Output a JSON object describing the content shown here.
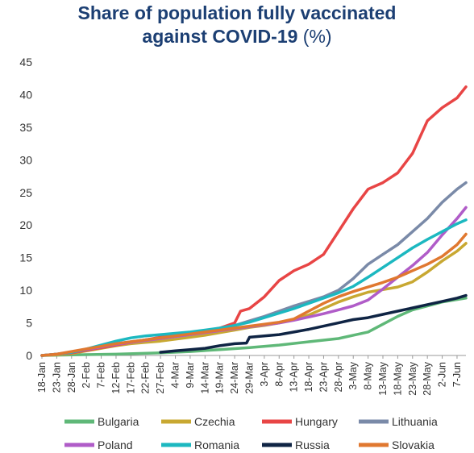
{
  "title": {
    "line1": "Share of population fully vaccinated",
    "line2_bold": "against COVID-19",
    "line2_unit": "(%)"
  },
  "chart_data": {
    "type": "line",
    "title": "Share of population fully vaccinated against COVID-19 (%)",
    "xlabel": "",
    "ylabel": "",
    "ylim": [
      0,
      45
    ],
    "yticks": [
      0,
      5,
      10,
      15,
      20,
      25,
      30,
      35,
      40,
      45
    ],
    "x_start": "18-Jan",
    "x_end": "10-Jun",
    "xtick_labels": [
      "18-Jan",
      "23-Jan",
      "28-Jan",
      "2-Feb",
      "7-Feb",
      "12-Feb",
      "17-Feb",
      "22-Feb",
      "27-Feb",
      "4-Mar",
      "9-Mar",
      "14-Mar",
      "19-Mar",
      "24-Mar",
      "29-Mar",
      "3-Apr",
      "8-Apr",
      "13-Apr",
      "18-Apr",
      "23-Apr",
      "28-Apr",
      "3-May",
      "8-May",
      "13-May",
      "18-May",
      "23-May",
      "28-May",
      "2-Jun",
      "7-Jun"
    ],
    "grid": false,
    "legend_position": "bottom",
    "series": [
      {
        "name": "Bulgaria",
        "color": "#5fb878",
        "points": [
          [
            "18-Jan",
            0
          ],
          [
            "28-Jan",
            0.1
          ],
          [
            "12-Feb",
            0.2
          ],
          [
            "27-Feb",
            0.4
          ],
          [
            "9-Mar",
            0.6
          ],
          [
            "19-Mar",
            0.9
          ],
          [
            "29-Mar",
            1.2
          ],
          [
            "8-Apr",
            1.6
          ],
          [
            "18-Apr",
            2.1
          ],
          [
            "28-Apr",
            2.6
          ],
          [
            "3-May",
            3.1
          ],
          [
            "8-May",
            3.6
          ],
          [
            "13-May",
            4.8
          ],
          [
            "18-May",
            6.0
          ],
          [
            "23-May",
            7.0
          ],
          [
            "28-May",
            7.6
          ],
          [
            "2-Jun",
            8.2
          ],
          [
            "10-Jun",
            8.8
          ]
        ]
      },
      {
        "name": "Czechia",
        "color": "#c8a832",
        "points": [
          [
            "18-Jan",
            0
          ],
          [
            "23-Jan",
            0.1
          ],
          [
            "28-Jan",
            0.3
          ],
          [
            "2-Feb",
            0.7
          ],
          [
            "7-Feb",
            1.1
          ],
          [
            "12-Feb",
            1.5
          ],
          [
            "17-Feb",
            1.8
          ],
          [
            "22-Feb",
            2.0
          ],
          [
            "27-Feb",
            2.2
          ],
          [
            "4-Mar",
            2.5
          ],
          [
            "9-Mar",
            2.8
          ],
          [
            "14-Mar",
            3.1
          ],
          [
            "19-Mar",
            3.5
          ],
          [
            "24-Mar",
            3.9
          ],
          [
            "29-Mar",
            4.3
          ],
          [
            "3-Apr",
            4.6
          ],
          [
            "8-Apr",
            5.0
          ],
          [
            "13-Apr",
            5.5
          ],
          [
            "18-Apr",
            6.2
          ],
          [
            "23-Apr",
            7.2
          ],
          [
            "28-Apr",
            8.2
          ],
          [
            "3-May",
            9.0
          ],
          [
            "8-May",
            9.7
          ],
          [
            "13-May",
            10.1
          ],
          [
            "18-May",
            10.5
          ],
          [
            "23-May",
            11.3
          ],
          [
            "28-May",
            12.8
          ],
          [
            "2-Jun",
            14.5
          ],
          [
            "7-Jun",
            16.0
          ],
          [
            "10-Jun",
            17.2
          ]
        ]
      },
      {
        "name": "Hungary",
        "color": "#e84545",
        "points": [
          [
            "18-Jan",
            0
          ],
          [
            "28-Jan",
            0.4
          ],
          [
            "7-Feb",
            1.2
          ],
          [
            "17-Feb",
            2.0
          ],
          [
            "27-Feb",
            2.8
          ],
          [
            "4-Mar",
            3.2
          ],
          [
            "14-Mar",
            3.8
          ],
          [
            "19-Mar",
            4.2
          ],
          [
            "24-Mar",
            5.0
          ],
          [
            "26-Mar",
            6.8
          ],
          [
            "29-Mar",
            7.2
          ],
          [
            "3-Apr",
            9.0
          ],
          [
            "8-Apr",
            11.5
          ],
          [
            "13-Apr",
            13.0
          ],
          [
            "18-Apr",
            14.0
          ],
          [
            "23-Apr",
            15.5
          ],
          [
            "28-Apr",
            19.0
          ],
          [
            "3-May",
            22.5
          ],
          [
            "8-May",
            25.5
          ],
          [
            "13-May",
            26.5
          ],
          [
            "18-May",
            28.0
          ],
          [
            "23-May",
            31.0
          ],
          [
            "28-May",
            36.0
          ],
          [
            "2-Jun",
            38.0
          ],
          [
            "7-Jun",
            39.5
          ],
          [
            "10-Jun",
            41.2
          ]
        ]
      },
      {
        "name": "Lithuania",
        "color": "#7a8aa8",
        "points": [
          [
            "18-Jan",
            0
          ],
          [
            "23-Jan",
            0.2
          ],
          [
            "28-Jan",
            0.5
          ],
          [
            "2-Feb",
            0.9
          ],
          [
            "7-Feb",
            1.4
          ],
          [
            "12-Feb",
            1.8
          ],
          [
            "17-Feb",
            2.1
          ],
          [
            "22-Feb",
            2.4
          ],
          [
            "27-Feb",
            2.7
          ],
          [
            "4-Mar",
            3.0
          ],
          [
            "9-Mar",
            3.3
          ],
          [
            "14-Mar",
            3.7
          ],
          [
            "19-Mar",
            4.1
          ],
          [
            "24-Mar",
            4.6
          ],
          [
            "29-Mar",
            5.3
          ],
          [
            "3-Apr",
            6.0
          ],
          [
            "8-Apr",
            6.8
          ],
          [
            "13-Apr",
            7.6
          ],
          [
            "18-Apr",
            8.3
          ],
          [
            "23-Apr",
            9.0
          ],
          [
            "28-Apr",
            10.0
          ],
          [
            "3-May",
            11.8
          ],
          [
            "8-May",
            14.0
          ],
          [
            "13-May",
            15.5
          ],
          [
            "18-May",
            17.0
          ],
          [
            "23-May",
            19.0
          ],
          [
            "28-May",
            21.0
          ],
          [
            "2-Jun",
            23.5
          ],
          [
            "7-Jun",
            25.5
          ],
          [
            "10-Jun",
            26.5
          ]
        ]
      },
      {
        "name": "Poland",
        "color": "#b05cc8",
        "points": [
          [
            "18-Jan",
            0
          ],
          [
            "23-Jan",
            0.2
          ],
          [
            "28-Jan",
            0.5
          ],
          [
            "2-Feb",
            0.9
          ],
          [
            "7-Feb",
            1.3
          ],
          [
            "12-Feb",
            1.7
          ],
          [
            "17-Feb",
            2.0
          ],
          [
            "22-Feb",
            2.3
          ],
          [
            "27-Feb",
            2.6
          ],
          [
            "4-Mar",
            2.9
          ],
          [
            "9-Mar",
            3.2
          ],
          [
            "14-Mar",
            3.5
          ],
          [
            "19-Mar",
            3.8
          ],
          [
            "24-Mar",
            4.1
          ],
          [
            "29-Mar",
            4.4
          ],
          [
            "3-Apr",
            4.7
          ],
          [
            "8-Apr",
            5.0
          ],
          [
            "13-Apr",
            5.4
          ],
          [
            "18-Apr",
            5.9
          ],
          [
            "23-Apr",
            6.4
          ],
          [
            "28-Apr",
            7.0
          ],
          [
            "3-May",
            7.6
          ],
          [
            "8-May",
            8.5
          ],
          [
            "13-May",
            10.2
          ],
          [
            "18-May",
            12.0
          ],
          [
            "23-May",
            13.8
          ],
          [
            "28-May",
            15.8
          ],
          [
            "2-Jun",
            18.5
          ],
          [
            "7-Jun",
            21.0
          ],
          [
            "10-Jun",
            22.7
          ]
        ]
      },
      {
        "name": "Romania",
        "color": "#1cb8c0",
        "points": [
          [
            "18-Jan",
            0
          ],
          [
            "23-Jan",
            0.2
          ],
          [
            "28-Jan",
            0.5
          ],
          [
            "2-Feb",
            1.0
          ],
          [
            "7-Feb",
            1.6
          ],
          [
            "12-Feb",
            2.2
          ],
          [
            "17-Feb",
            2.7
          ],
          [
            "22-Feb",
            3.0
          ],
          [
            "27-Feb",
            3.2
          ],
          [
            "4-Mar",
            3.4
          ],
          [
            "9-Mar",
            3.6
          ],
          [
            "14-Mar",
            3.9
          ],
          [
            "19-Mar",
            4.2
          ],
          [
            "24-Mar",
            4.6
          ],
          [
            "29-Mar",
            5.1
          ],
          [
            "3-Apr",
            5.8
          ],
          [
            "8-Apr",
            6.5
          ],
          [
            "13-Apr",
            7.2
          ],
          [
            "18-Apr",
            8.0
          ],
          [
            "23-Apr",
            8.8
          ],
          [
            "28-Apr",
            9.6
          ],
          [
            "3-May",
            10.6
          ],
          [
            "8-May",
            12.0
          ],
          [
            "13-May",
            13.5
          ],
          [
            "18-May",
            15.0
          ],
          [
            "23-May",
            16.5
          ],
          [
            "28-May",
            17.8
          ],
          [
            "2-Jun",
            19.0
          ],
          [
            "7-Jun",
            20.2
          ],
          [
            "10-Jun",
            20.8
          ]
        ]
      },
      {
        "name": "Russia",
        "color": "#0f2444",
        "points": [
          [
            "27-Feb",
            0.5
          ],
          [
            "4-Mar",
            0.7
          ],
          [
            "9-Mar",
            0.9
          ],
          [
            "14-Mar",
            1.1
          ],
          [
            "19-Mar",
            1.5
          ],
          [
            "24-Mar",
            1.8
          ],
          [
            "28-Mar",
            1.9
          ],
          [
            "29-Mar",
            2.8
          ],
          [
            "3-Apr",
            3.0
          ],
          [
            "8-Apr",
            3.2
          ],
          [
            "13-Apr",
            3.6
          ],
          [
            "18-Apr",
            4.0
          ],
          [
            "23-Apr",
            4.5
          ],
          [
            "28-Apr",
            5.0
          ],
          [
            "3-May",
            5.5
          ],
          [
            "8-May",
            5.8
          ],
          [
            "13-May",
            6.3
          ],
          [
            "18-May",
            6.8
          ],
          [
            "23-May",
            7.3
          ],
          [
            "28-May",
            7.8
          ],
          [
            "2-Jun",
            8.3
          ],
          [
            "7-Jun",
            8.8
          ],
          [
            "10-Jun",
            9.2
          ]
        ]
      },
      {
        "name": "Slovakia",
        "color": "#e07830",
        "points": [
          [
            "18-Jan",
            0
          ],
          [
            "23-Jan",
            0.2
          ],
          [
            "28-Jan",
            0.6
          ],
          [
            "2-Feb",
            1.0
          ],
          [
            "7-Feb",
            1.4
          ],
          [
            "12-Feb",
            1.8
          ],
          [
            "17-Feb",
            2.1
          ],
          [
            "22-Feb",
            2.4
          ],
          [
            "27-Feb",
            2.7
          ],
          [
            "4-Mar",
            3.0
          ],
          [
            "9-Mar",
            3.3
          ],
          [
            "14-Mar",
            3.6
          ],
          [
            "19-Mar",
            3.9
          ],
          [
            "24-Mar",
            4.2
          ],
          [
            "29-Mar",
            4.5
          ],
          [
            "3-Apr",
            4.8
          ],
          [
            "8-Apr",
            5.1
          ],
          [
            "13-Apr",
            5.6
          ],
          [
            "18-Apr",
            6.8
          ],
          [
            "23-Apr",
            8.0
          ],
          [
            "28-Apr",
            9.0
          ],
          [
            "3-May",
            9.8
          ],
          [
            "8-May",
            10.5
          ],
          [
            "13-May",
            11.2
          ],
          [
            "18-May",
            12.0
          ],
          [
            "23-May",
            13.0
          ],
          [
            "28-May",
            14.0
          ],
          [
            "2-Jun",
            15.2
          ],
          [
            "7-Jun",
            17.0
          ],
          [
            "10-Jun",
            18.6
          ]
        ]
      }
    ]
  }
}
